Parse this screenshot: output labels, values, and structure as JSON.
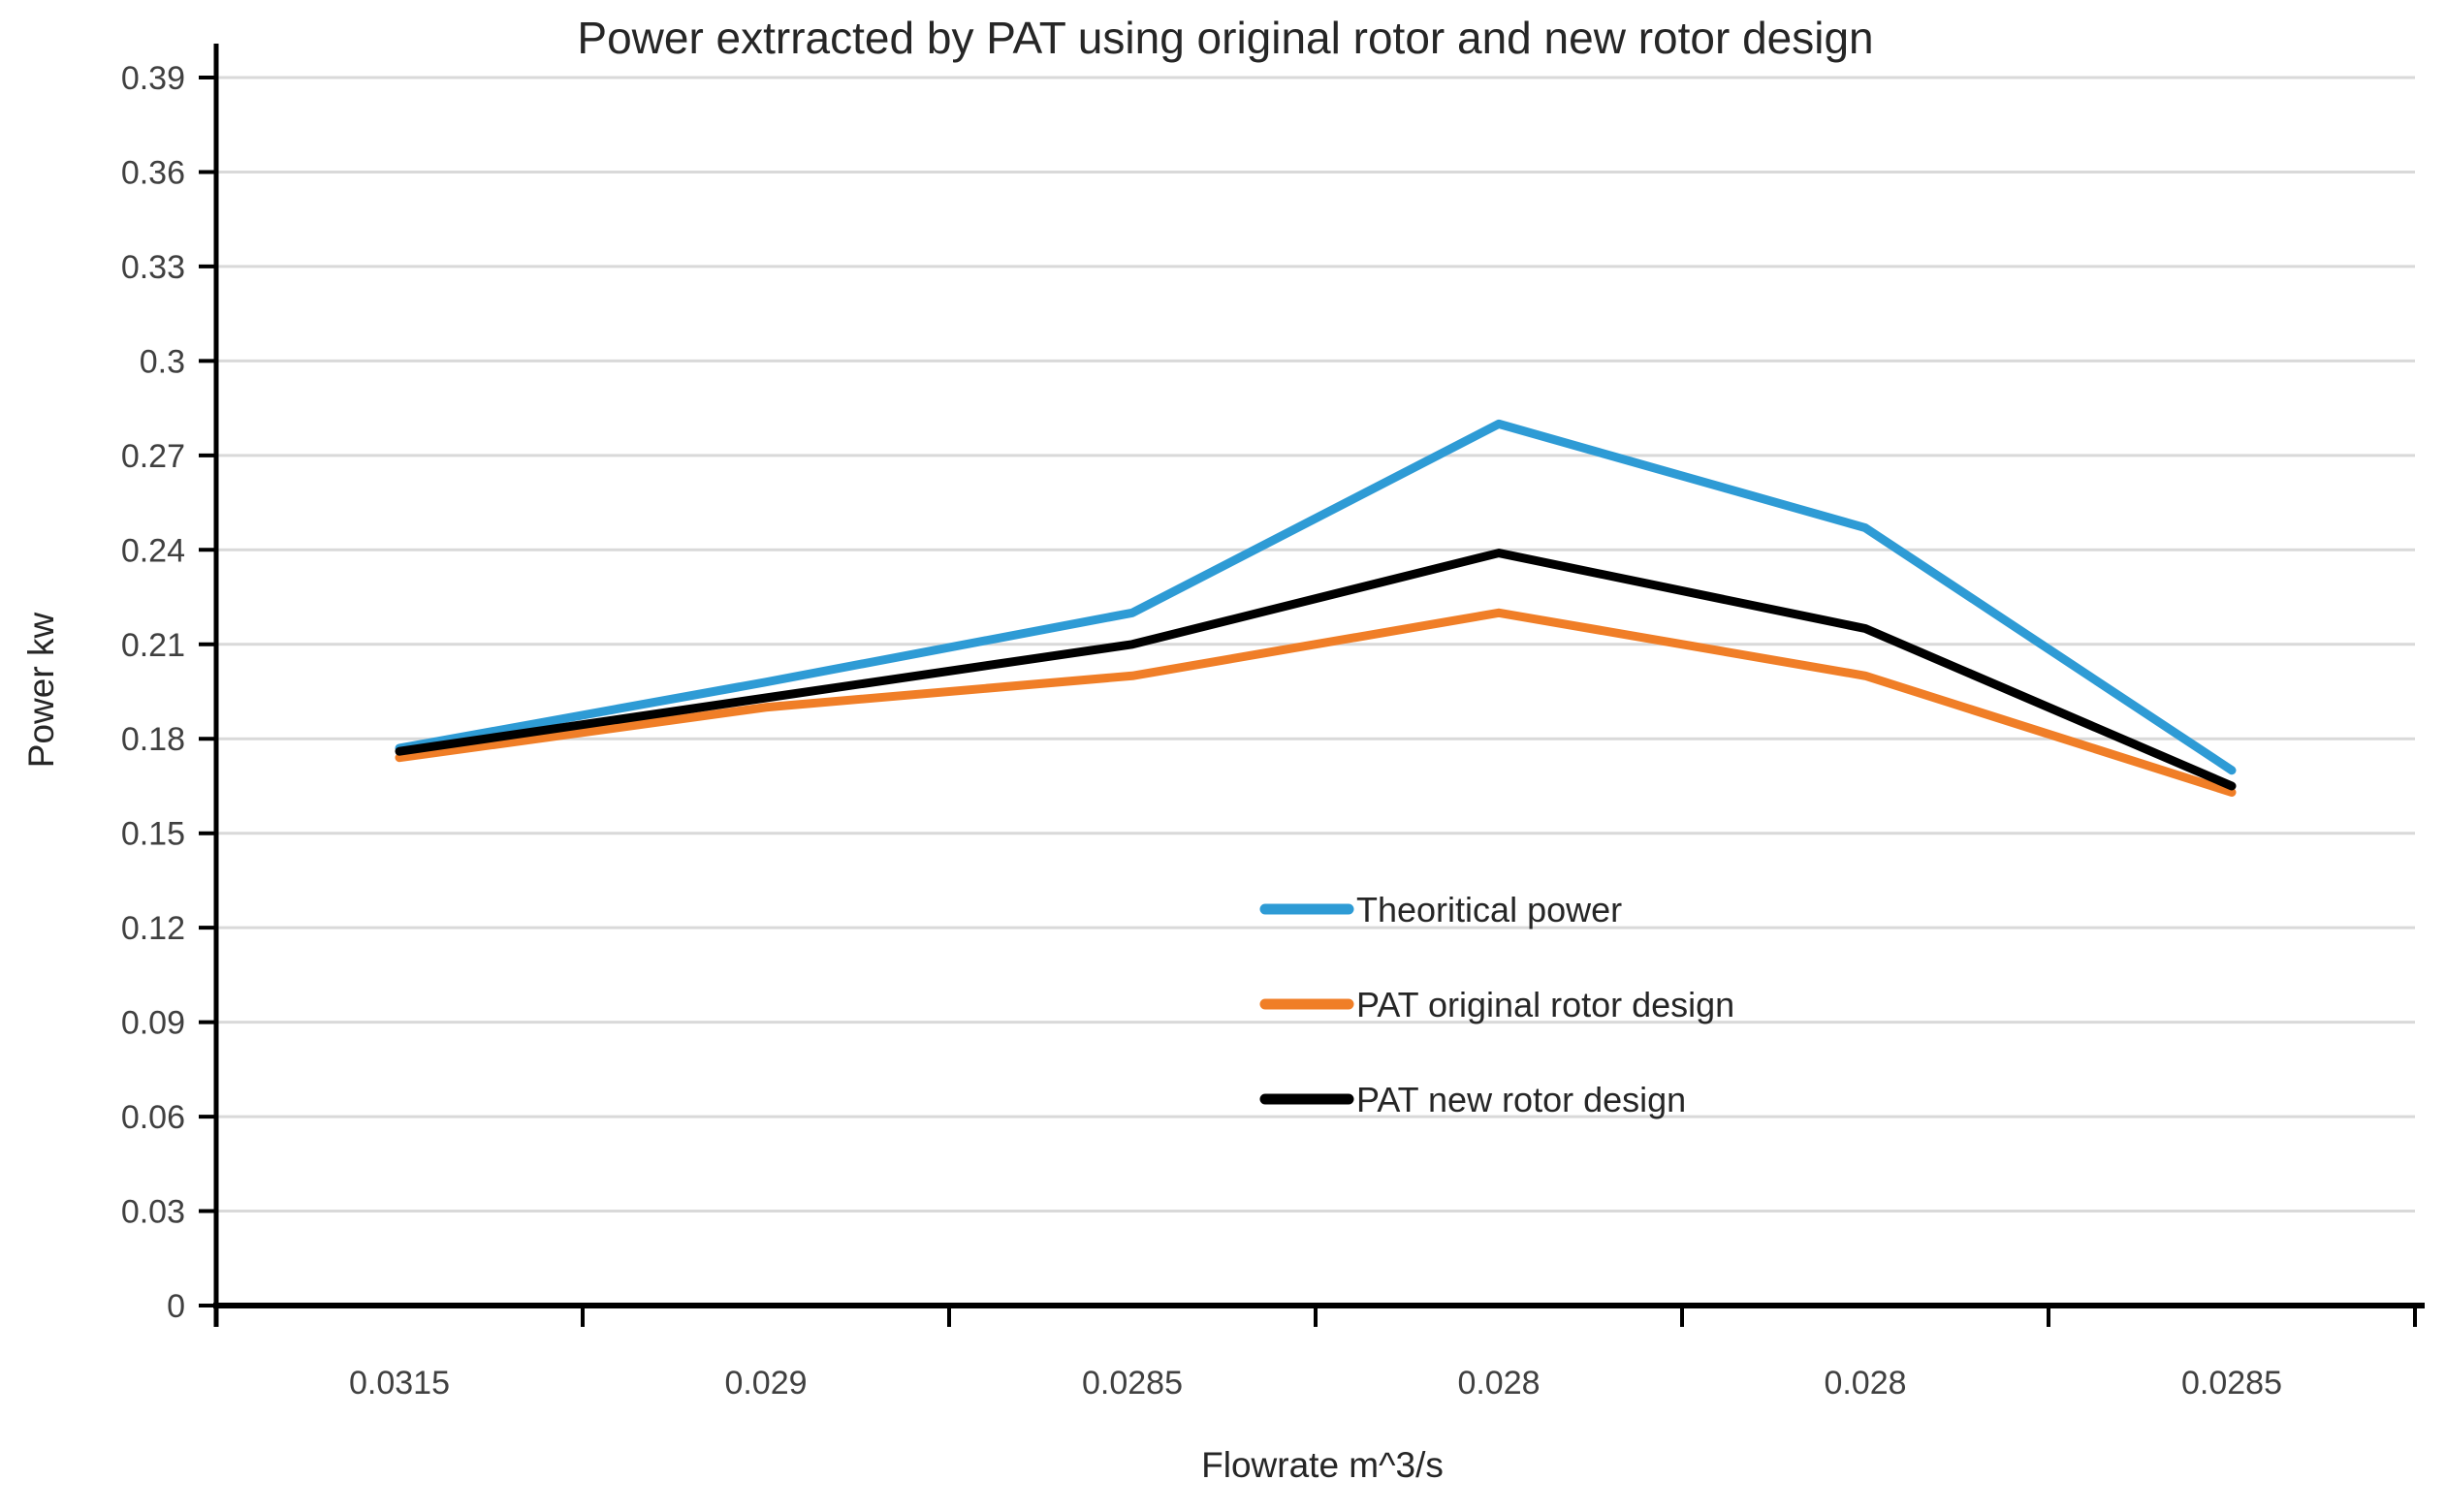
{
  "chart_data": {
    "type": "line",
    "title": "Power extrracted by PAT using original rotor and new rotor design",
    "xlabel": "Flowrate m^3/s",
    "ylabel": "Power kw",
    "categories": [
      "0.0315",
      "0.029",
      "0.0285",
      "0.028",
      "0.028",
      "0.0285"
    ],
    "series": [
      {
        "name": "Theoritical power",
        "color": "#2E9BD5",
        "values": [
          0.177,
          0.198,
          0.22,
          0.28,
          0.247,
          0.17
        ]
      },
      {
        "name": "PAT original rotor design",
        "color": "#F07E27",
        "values": [
          0.174,
          0.19,
          0.2,
          0.22,
          0.2,
          0.163
        ]
      },
      {
        "name": "PAT new rotor design",
        "color": "#000000",
        "values": [
          0.176,
          0.193,
          0.21,
          0.239,
          0.215,
          0.165
        ]
      }
    ],
    "ylim": [
      0,
      0.39
    ],
    "yticks": [
      {
        "value": 0.0,
        "label": "0"
      },
      {
        "value": 0.03,
        "label": "0.03"
      },
      {
        "value": 0.06,
        "label": "0.06"
      },
      {
        "value": 0.09,
        "label": "0.09"
      },
      {
        "value": 0.12,
        "label": "0.12"
      },
      {
        "value": 0.15,
        "label": "0.15"
      },
      {
        "value": 0.18,
        "label": "0.18"
      },
      {
        "value": 0.21,
        "label": "0.21"
      },
      {
        "value": 0.24,
        "label": "0.24"
      },
      {
        "value": 0.27,
        "label": "0.27"
      },
      {
        "value": 0.3,
        "label": "0.3"
      },
      {
        "value": 0.33,
        "label": "0.33"
      },
      {
        "value": 0.36,
        "label": "0.36"
      },
      {
        "value": 0.39,
        "label": "0.39"
      }
    ],
    "grid": true,
    "legend_position": "inside-right",
    "styles": {
      "gridline_color": "#D9D9D9",
      "axis_color": "#000000",
      "text_color": "#404040",
      "title_color": "#262626",
      "background": "#FFFFFF"
    }
  }
}
